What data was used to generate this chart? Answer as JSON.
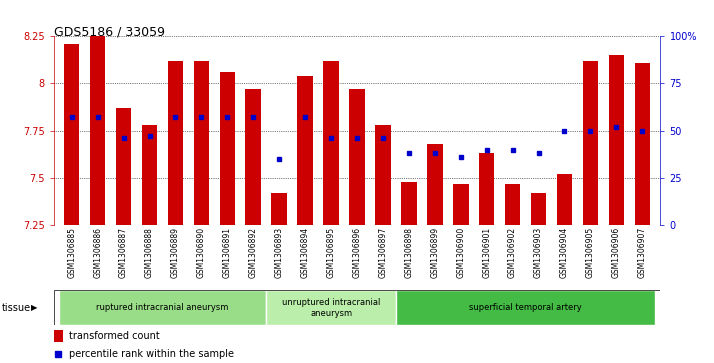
{
  "title": "GDS5186 / 33059",
  "samples": [
    "GSM1306885",
    "GSM1306886",
    "GSM1306887",
    "GSM1306888",
    "GSM1306889",
    "GSM1306890",
    "GSM1306891",
    "GSM1306892",
    "GSM1306893",
    "GSM1306894",
    "GSM1306895",
    "GSM1306896",
    "GSM1306897",
    "GSM1306898",
    "GSM1306899",
    "GSM1306900",
    "GSM1306901",
    "GSM1306902",
    "GSM1306903",
    "GSM1306904",
    "GSM1306905",
    "GSM1306906",
    "GSM1306907"
  ],
  "transformed_counts": [
    8.21,
    8.25,
    7.87,
    7.78,
    8.12,
    8.12,
    8.06,
    7.97,
    7.42,
    8.04,
    8.12,
    7.97,
    7.78,
    7.48,
    7.68,
    7.47,
    7.63,
    7.47,
    7.42,
    7.52,
    8.12,
    8.15,
    8.11
  ],
  "percentile_ranks": [
    57,
    57,
    46,
    47,
    57,
    57,
    57,
    57,
    35,
    57,
    46,
    46,
    46,
    38,
    38,
    36,
    40,
    40,
    38,
    50,
    50,
    52,
    50
  ],
  "ylim_left": [
    7.25,
    8.25
  ],
  "ylim_right": [
    0,
    100
  ],
  "yticks_left": [
    7.25,
    7.5,
    7.75,
    8.0,
    8.25
  ],
  "ytick_labels_left": [
    "7.25",
    "7.5",
    "7.75",
    "8",
    "8.25"
  ],
  "yticks_right": [
    0,
    25,
    50,
    75,
    100
  ],
  "ytick_labels_right": [
    "0",
    "25",
    "50",
    "75",
    "100%"
  ],
  "bar_color": "#cc0000",
  "marker_color": "#0000cc",
  "tissue_groups": [
    {
      "label": "ruptured intracranial aneurysm",
      "start": 0,
      "end": 8,
      "color": "#99dd88"
    },
    {
      "label": "unruptured intracranial\naneurysm",
      "start": 8,
      "end": 13,
      "color": "#bbeeaa"
    },
    {
      "label": "superficial temporal artery",
      "start": 13,
      "end": 23,
      "color": "#44bb44"
    }
  ]
}
